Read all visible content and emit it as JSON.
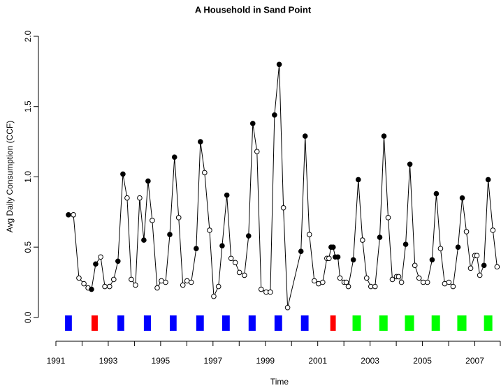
{
  "chart_data": {
    "type": "line",
    "title": "A Household in Sand Point",
    "x_label": "Time",
    "y_label": "Avg Daily Consumption (CCF)",
    "xlim": [
      1990.6,
      2008.0
    ],
    "ylim": [
      -0.1,
      2.0
    ],
    "xticks": [
      1991,
      1993,
      1995,
      1997,
      1999,
      2001,
      2003,
      2005,
      2007
    ],
    "minor_xticks": [
      1992,
      1994,
      1996,
      1998,
      2000,
      2002,
      2004,
      2006,
      2008
    ],
    "yticks": [
      {
        "value": 0,
        "label": "0.0"
      },
      0.5,
      {
        "value": 1,
        "label": "1.0"
      },
      1.5,
      {
        "value": 2,
        "label": "2.0"
      }
    ],
    "color": "#000000",
    "x": [
      1991.48,
      1991.67,
      1991.88,
      1992.07,
      1992.23,
      1992.36,
      1992.52,
      1992.71,
      1992.87,
      1993.05,
      1993.21,
      1993.37,
      1993.56,
      1993.72,
      1993.88,
      1994.04,
      1994.2,
      1994.36,
      1994.52,
      1994.68,
      1994.87,
      1995.03,
      1995.19,
      1995.35,
      1995.53,
      1995.69,
      1995.85,
      1996.01,
      1996.17,
      1996.36,
      1996.52,
      1996.68,
      1996.87,
      1997.03,
      1997.21,
      1997.35,
      1997.53,
      1997.69,
      1997.85,
      1998.01,
      1998.2,
      1998.36,
      1998.52,
      1998.68,
      1998.84,
      1999.03,
      1999.19,
      1999.35,
      1999.53,
      1999.69,
      1999.85,
      2000.36,
      2000.52,
      2000.68,
      2000.87,
      2001.03,
      2001.19,
      2001.35,
      2001.43,
      2001.51,
      2001.59,
      2001.67,
      2001.77,
      2001.85,
      2002.01,
      2002.09,
      2002.17,
      2002.36,
      2002.55,
      2002.71,
      2002.87,
      2003.03,
      2003.19,
      2003.37,
      2003.53,
      2003.69,
      2003.85,
      2004.01,
      2004.09,
      2004.2,
      2004.36,
      2004.52,
      2004.71,
      2004.87,
      2005.03,
      2005.19,
      2005.37,
      2005.53,
      2005.69,
      2005.85,
      2006.01,
      2006.17,
      2006.36,
      2006.52,
      2006.68,
      2006.84,
      2007.0,
      2007.08,
      2007.19,
      2007.35,
      2007.51,
      2007.69,
      2007.85
    ],
    "values": [
      0.73,
      0.73,
      0.28,
      0.24,
      0.21,
      0.2,
      0.38,
      0.43,
      0.22,
      0.22,
      0.27,
      0.4,
      1.02,
      0.85,
      0.27,
      0.23,
      0.85,
      0.55,
      0.97,
      0.69,
      0.21,
      0.26,
      0.25,
      0.59,
      1.14,
      0.71,
      0.23,
      0.26,
      0.25,
      0.49,
      1.25,
      1.03,
      0.62,
      0.15,
      0.22,
      0.51,
      0.87,
      0.42,
      0.39,
      0.32,
      0.3,
      0.58,
      1.38,
      1.18,
      0.2,
      0.18,
      0.18,
      1.44,
      1.8,
      0.78,
      0.07,
      0.47,
      1.29,
      0.59,
      0.26,
      0.24,
      0.25,
      0.42,
      0.42,
      0.5,
      0.5,
      0.43,
      0.43,
      0.28,
      0.25,
      0.25,
      0.22,
      0.41,
      0.98,
      0.55,
      0.28,
      0.22,
      0.22,
      0.57,
      1.29,
      0.71,
      0.27,
      0.29,
      0.29,
      0.25,
      0.52,
      1.09,
      0.37,
      0.28,
      0.25,
      0.25,
      0.41,
      0.88,
      0.49,
      0.24,
      0.25,
      0.22,
      0.5,
      0.85,
      0.61,
      0.35,
      0.44,
      0.44,
      0.3,
      0.37,
      0.98,
      0.62,
      0.36
    ],
    "filled": [
      true,
      false,
      false,
      false,
      false,
      true,
      true,
      false,
      false,
      false,
      false,
      true,
      true,
      false,
      false,
      false,
      false,
      true,
      true,
      false,
      false,
      false,
      false,
      true,
      true,
      false,
      false,
      false,
      false,
      true,
      true,
      false,
      false,
      false,
      false,
      true,
      true,
      false,
      false,
      false,
      false,
      true,
      true,
      false,
      false,
      false,
      false,
      true,
      true,
      false,
      false,
      true,
      true,
      false,
      false,
      false,
      false,
      false,
      false,
      true,
      true,
      true,
      true,
      false,
      false,
      false,
      false,
      true,
      true,
      false,
      false,
      false,
      false,
      true,
      true,
      false,
      false,
      false,
      false,
      false,
      true,
      true,
      false,
      false,
      false,
      false,
      true,
      true,
      false,
      false,
      false,
      false,
      true,
      true,
      false,
      false,
      false,
      false,
      false,
      true,
      true,
      false,
      false
    ],
    "periods": [
      {
        "start": 1991.35,
        "end": 1991.61,
        "color": "#0000ff"
      },
      {
        "start": 1992.36,
        "end": 1992.6,
        "color": "#ff0000"
      },
      {
        "start": 1993.35,
        "end": 1993.61,
        "color": "#0000ff"
      },
      {
        "start": 1994.36,
        "end": 1994.63,
        "color": "#0000ff"
      },
      {
        "start": 1995.35,
        "end": 1995.61,
        "color": "#0000ff"
      },
      {
        "start": 1996.36,
        "end": 1996.65,
        "color": "#0000ff"
      },
      {
        "start": 1997.35,
        "end": 1997.64,
        "color": "#0000ff"
      },
      {
        "start": 1998.36,
        "end": 1998.63,
        "color": "#0000ff"
      },
      {
        "start": 1999.35,
        "end": 1999.64,
        "color": "#0000ff"
      },
      {
        "start": 2000.36,
        "end": 2000.65,
        "color": "#0000ff"
      },
      {
        "start": 2001.48,
        "end": 2001.69,
        "color": "#ff0000"
      },
      {
        "start": 2002.33,
        "end": 2002.65,
        "color": "#00ff00"
      },
      {
        "start": 2003.35,
        "end": 2003.67,
        "color": "#00ff00"
      },
      {
        "start": 2004.33,
        "end": 2004.68,
        "color": "#00ff00"
      },
      {
        "start": 2005.35,
        "end": 2005.67,
        "color": "#00ff00"
      },
      {
        "start": 2006.33,
        "end": 2006.68,
        "color": "#00ff00"
      },
      {
        "start": 2007.35,
        "end": 2007.67,
        "color": "#00ff00"
      }
    ]
  }
}
